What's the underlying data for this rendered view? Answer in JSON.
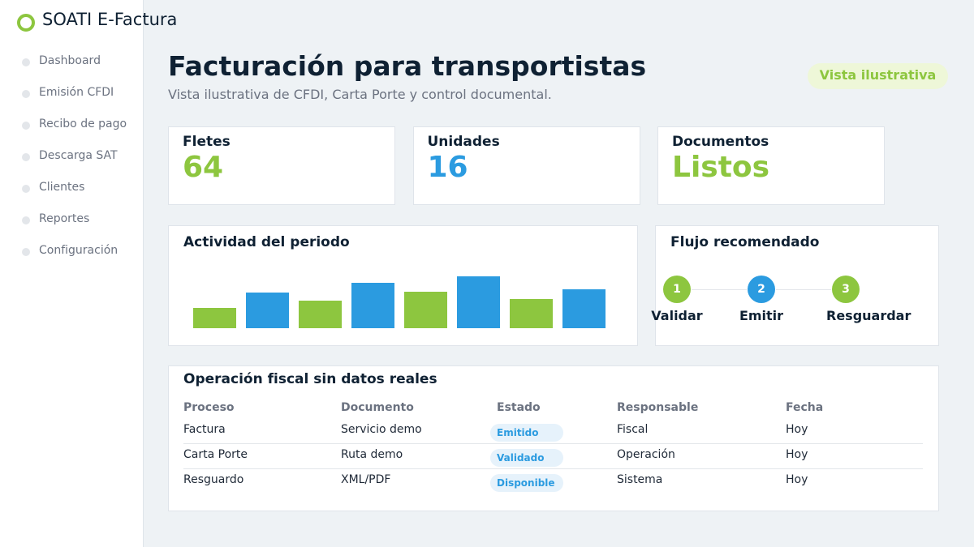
{
  "app": {
    "name": "SOATI E-Factura"
  },
  "nav": [
    "Dashboard",
    "Emisión CFDI",
    "Recibo de pago",
    "Descarga SAT",
    "Clientes",
    "Reportes",
    "Configuración"
  ],
  "header": {
    "title": "Facturación para transportistas",
    "subtitle": "Vista ilustrativa de CFDI, Carta Porte y control documental.",
    "badge": "Vista ilustrativa"
  },
  "cards": [
    {
      "label": "Fletes",
      "value": 64,
      "color": "#8dc63f"
    },
    {
      "label": "Unidades",
      "value": 16,
      "color": "#2b9be0"
    },
    {
      "label": "Documentos",
      "value": "Listos",
      "color": "#8dc63f"
    }
  ],
  "activity": {
    "title": "Actividad del periodo",
    "values": [
      25,
      44,
      34,
      56,
      45,
      64,
      36,
      48
    ],
    "colors": [
      "#8dc63f",
      "#2b9be0"
    ]
  },
  "flow": {
    "title": "Flujo recomendado",
    "steps": [
      {
        "number": 1,
        "label": "Validar",
        "color": "#8dc63f"
      },
      {
        "number": 2,
        "label": "Emitir",
        "color": "#2b9be0"
      },
      {
        "number": 3,
        "label": "Resguardar",
        "color": "#8dc63f"
      }
    ]
  },
  "table": {
    "title": "Operación fiscal sin datos reales",
    "columns": [
      "Proceso",
      "Documento",
      "Estado",
      "Responsable",
      "Fecha"
    ],
    "rows": [
      [
        "Factura",
        "Servicio demo",
        "Emitido",
        "Fiscal",
        "Hoy"
      ],
      [
        "Carta Porte",
        "Ruta demo",
        "Validado",
        "Operación",
        "Hoy"
      ],
      [
        "Resguardo",
        "XML/PDF",
        "Disponible",
        "Sistema",
        "Hoy"
      ]
    ]
  }
}
